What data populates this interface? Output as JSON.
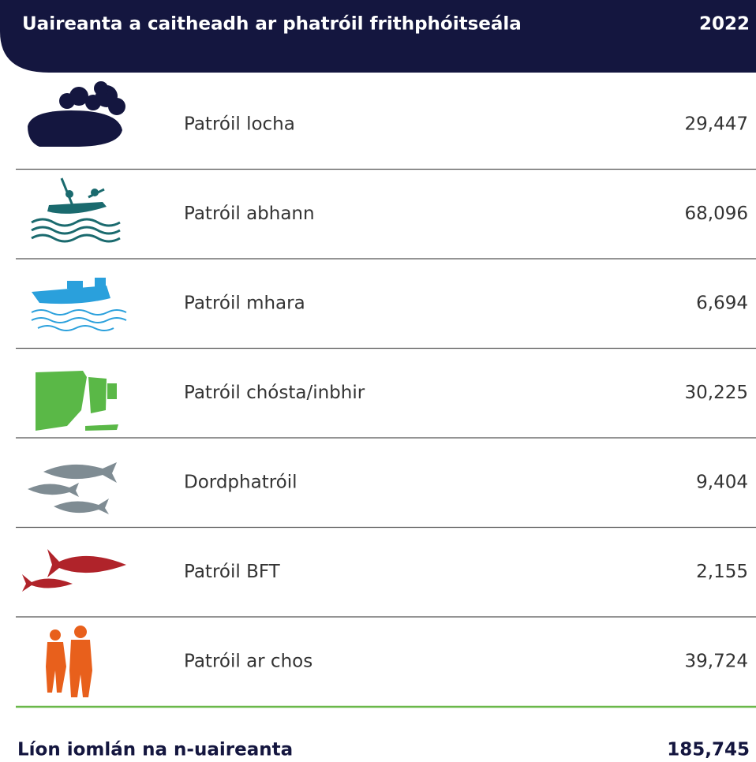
{
  "header": {
    "title": "Uaireanta a caitheadh ar phatróil frithphóitseála",
    "year": "2022"
  },
  "table": {
    "rows": [
      {
        "label": "Patróil locha",
        "value": "29,447"
      },
      {
        "label": "Patróil abhann",
        "value": "68,096"
      },
      {
        "label": "Patróil mhara",
        "value": "6,694"
      },
      {
        "label": "Patróil chósta/inbhir",
        "value": "30,225"
      },
      {
        "label": "Dordphatróil",
        "value": "9,404"
      },
      {
        "label": "Patróil BFT",
        "value": "2,155"
      },
      {
        "label": "Patróil ar chos",
        "value": "39,724"
      }
    ]
  },
  "total": {
    "label": "Líon iomlán na n-uaireanta",
    "value": "185,745"
  }
}
